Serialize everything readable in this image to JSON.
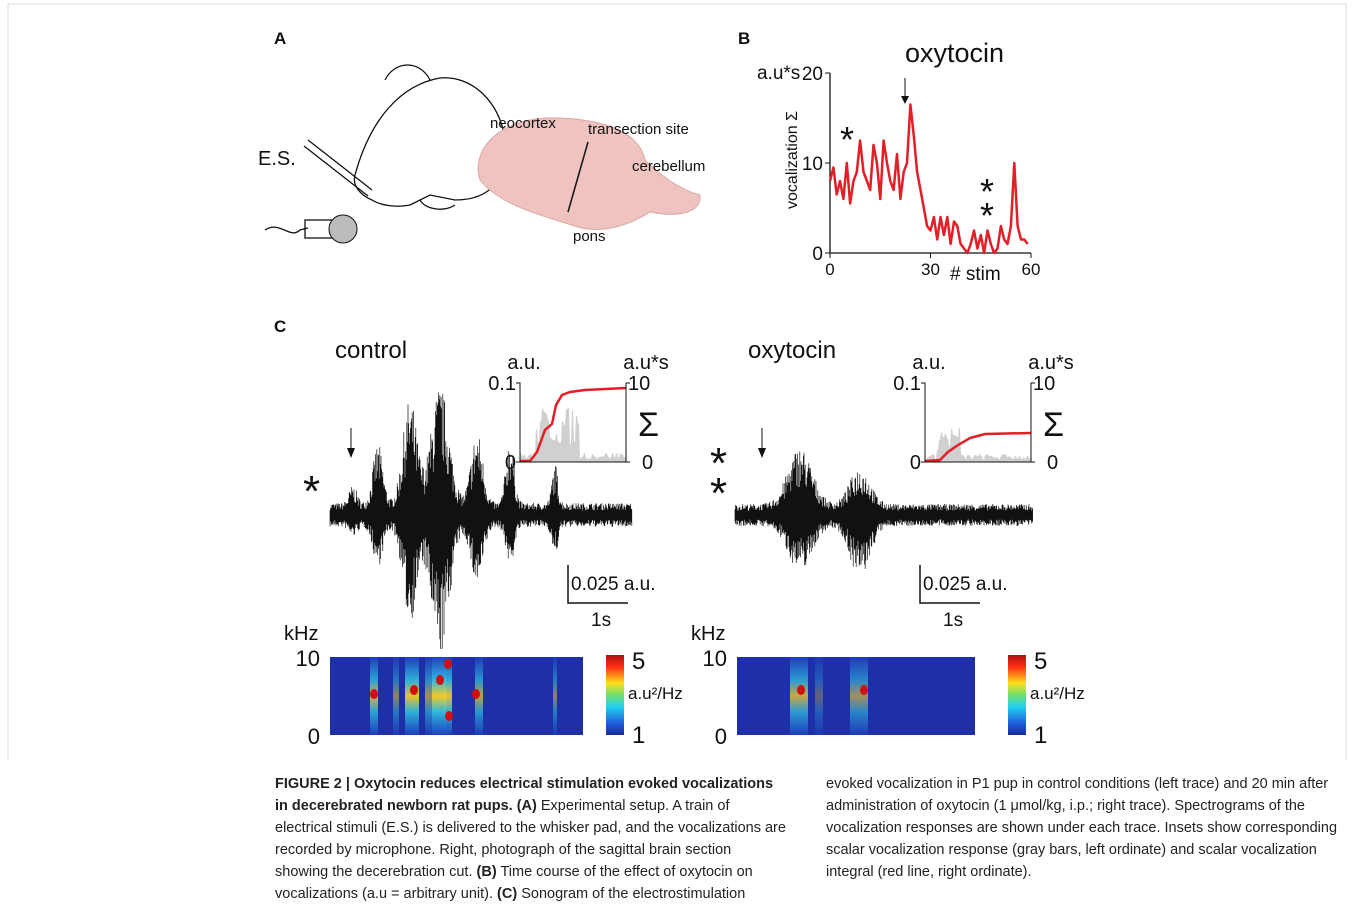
{
  "panel_a": {
    "label": "A",
    "electrode": "E.S.",
    "neocortex": "neocortex",
    "transection": "transection site",
    "cerebellum": "cerebellum",
    "pons": "pons"
  },
  "panel_b": {
    "label": "B",
    "type": "line",
    "title": "oxytocin",
    "unit": "a.u*s",
    "y_label": "vocalization Σ",
    "x_label": "# stim",
    "color": "#e41e26",
    "xlim": [
      0,
      60
    ],
    "ylim": [
      0,
      20
    ],
    "xticks": [
      0,
      30,
      60
    ],
    "yticks": [
      0,
      10,
      20
    ],
    "x": [
      0,
      1,
      2,
      3,
      4,
      5,
      6,
      7,
      8,
      9,
      10,
      11,
      12,
      13,
      14,
      15,
      16,
      17,
      18,
      19,
      20,
      21,
      22,
      23,
      24,
      25,
      26,
      27,
      28,
      29,
      30,
      31,
      32,
      33,
      34,
      35,
      36,
      37,
      38,
      39,
      40,
      41,
      42,
      43,
      44,
      45,
      46,
      47,
      48,
      49,
      50,
      51,
      52,
      53,
      54,
      55,
      56,
      57,
      58,
      59
    ],
    "values": [
      8,
      9.5,
      6.5,
      8,
      6,
      10,
      5.5,
      8,
      9,
      12.5,
      9,
      8,
      7,
      12,
      10,
      6,
      12.5,
      10,
      8,
      7,
      11,
      6,
      9,
      10,
      16.5,
      13,
      9,
      7,
      5,
      3,
      2.5,
      4,
      1.5,
      4,
      2,
      4,
      1,
      3.5,
      3,
      1,
      0.5,
      0,
      1,
      2.5,
      0.5,
      2,
      0,
      2.5,
      1,
      0,
      0.5,
      3,
      1.5,
      1,
      3,
      10,
      3,
      1.5,
      1.5,
      1
    ],
    "marker_1": "*",
    "marker_2a": "*",
    "marker_2b": "*"
  },
  "panel_c": {
    "label": "C",
    "control": {
      "title": "control",
      "marker": "*",
      "inset_left_unit": "a.u.",
      "inset_right_unit": "a.u*s",
      "inset_left_max": "0.1",
      "inset_right_max": "10",
      "inset_left_min": "0",
      "inset_right_min": "0",
      "sigma": "Σ",
      "scale_amp": "0.025 a.u.",
      "scale_time": "1s",
      "freq_unit": "kHz",
      "freq_max": "10",
      "freq_min": "0",
      "cbar_max": "5",
      "cbar_unit": "a.u²/Hz",
      "cbar_min": "1"
    },
    "oxytocin": {
      "title": "oxytocin",
      "marker_a": "*",
      "marker_b": "*",
      "inset_left_unit": "a.u.",
      "inset_right_unit": "a.u*s",
      "inset_left_max": "0.1",
      "inset_right_max": "10",
      "inset_left_min": "0",
      "inset_right_min": "0",
      "sigma": "Σ",
      "scale_amp": "0.025 a.u.",
      "scale_time": "1s",
      "freq_unit": "kHz",
      "freq_max": "10",
      "freq_min": "0",
      "cbar_max": "5",
      "cbar_unit": "a.u²/Hz",
      "cbar_min": "1"
    }
  },
  "caption": {
    "title": "FIGURE 2 | Oxytocin reduces electrical stimulation evoked vocalizations in decerebrated newborn rat pups.",
    "a_label": "(A)",
    "a_text": "Experimental setup. A train of electrical stimuli (E.S.) is delivered to the whisker pad, and the vocalizations are recorded by microphone. Right, photograph of the sagittal brain section showing the decerebration cut.",
    "b_label": "(B)",
    "b_text": "Time course of the effect of oxytocin on vocalizations (a.u = arbitrary unit).",
    "c_label": "(C)",
    "c_text": "Sonogram of the electrostimulation evoked vocalization in P1 pup in control conditions (left trace) and 20 min after administration of oxytocin (1 μmol/kg, i.p.; right trace). Spectrograms of the vocalization responses are shown under each trace. Insets show corresponding scalar vocalization response (gray bars, left ordinate) and scalar vocalization integral (red line, right ordinate)."
  }
}
